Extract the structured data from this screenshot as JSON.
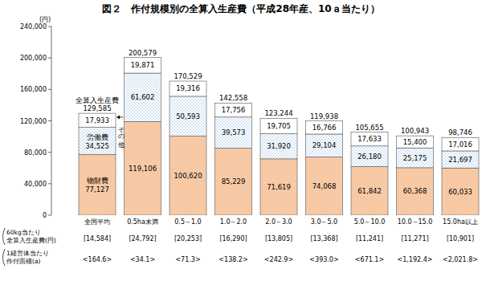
{
  "chart_data": {
    "type": "bar",
    "stacked": true,
    "data_labels": true,
    "grid": false,
    "title": "図２　作付規模別の全算入生産費（平成28年産、10ａ当たり）",
    "y_unit": "(円)",
    "categories": [
      "全国平均",
      "0.5ha未満",
      "0.5～1.0",
      "1.0～2.0",
      "2.0～3.0",
      "3.0～5.0",
      "5.0～10.0",
      "10.0～15.0",
      "15.0ha以上"
    ],
    "series": [
      {
        "name": "物財費",
        "color": "#f9d0ae",
        "values": [
          77127,
          119106,
          100620,
          85229,
          71619,
          74068,
          61842,
          60368,
          60033
        ],
        "value_labels": [
          "77,127",
          "119,106",
          "100,620",
          "85,229",
          "71,619",
          "74,068",
          "61,842",
          "60,368",
          "60,033"
        ]
      },
      {
        "name": "労働費",
        "color": "#ffffff",
        "values": [
          34525,
          61602,
          50593,
          39573,
          31920,
          29104,
          26180,
          25175,
          21697
        ],
        "value_labels": [
          "34,525",
          "61,602",
          "50,593",
          "39,573",
          "31,920",
          "29,104",
          "26,180",
          "25,175",
          "21,697"
        ]
      },
      {
        "name": "その他",
        "color": "#ffffff",
        "values": [
          17933,
          19871,
          19316,
          17756,
          19705,
          16766,
          17633,
          15400,
          17016
        ],
        "value_labels": [
          "17,933",
          "19,871",
          "19,316",
          "17,756",
          "19,705",
          "16,766",
          "17,633",
          "15,400",
          "17,016"
        ]
      }
    ],
    "total_name": "全算入生産費",
    "totals": [
      129585,
      200579,
      170529,
      142558,
      123244,
      119938,
      105655,
      100943,
      98746
    ],
    "total_labels": [
      "129,585",
      "200,579",
      "170,529",
      "142,558",
      "123,244",
      "119,938",
      "105,655",
      "100,943",
      "98,746"
    ],
    "ylim": [
      0,
      240000
    ],
    "yticks": [
      0,
      {
        "value": 40000,
        "label": "40,000"
      },
      {
        "value": 80000,
        "label": "80,000"
      },
      {
        "value": 120000,
        "label": "120,000"
      },
      {
        "value": 160000,
        "label": "160,000"
      },
      {
        "value": 200000,
        "label": "200,000"
      },
      {
        "value": 240000,
        "label": "240,000"
      }
    ],
    "table_rows": [
      {
        "label_lines": [
          "60kg当たり",
          "全算入生産費(円)"
        ],
        "values": [
          14584,
          24792,
          20253,
          16290,
          13805,
          13368,
          11241,
          11271,
          10901
        ],
        "value_labels": [
          "[14,584]",
          "[24,792]",
          "[20,253]",
          "[16,290]",
          "[13,805]",
          "[13,368]",
          "[11,241]",
          "[11,271]",
          "[10,901]"
        ]
      },
      {
        "label_lines": [
          "1経営体当たり",
          "作付面積(a)"
        ],
        "values": [
          164.6,
          34.1,
          71.3,
          138.2,
          242.9,
          393.0,
          671.1,
          1192.4,
          2021.8
        ],
        "value_labels": [
          "<164.6>",
          "<34.1>",
          "<71.3>",
          "<138.2>",
          "<242.9>",
          "<393.0>",
          "<671.1>",
          "<1,192.4>",
          "<2,021.8>"
        ]
      }
    ]
  }
}
